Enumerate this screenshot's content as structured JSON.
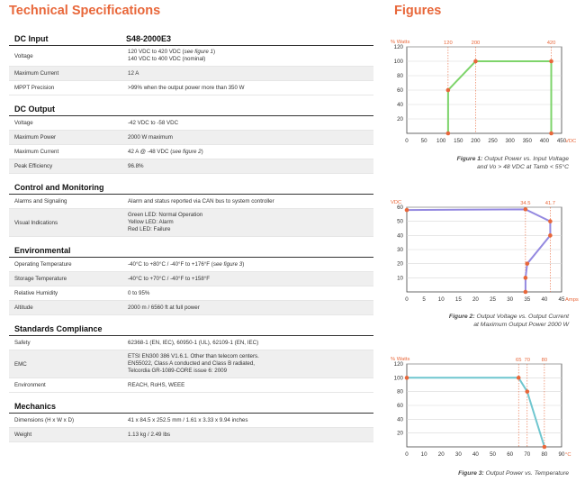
{
  "title": "Technical Specifications",
  "figures_title": "Figures",
  "sections": [
    {
      "name": "DC Input",
      "header_value": "S48-2000E3",
      "rows": [
        {
          "label": "Voltage",
          "lines": [
            "120 VDC to 420 VDC (|see figure 1|)",
            "140 VDC to 400 VDC (nominal)"
          ]
        },
        {
          "label": "Maximum Current",
          "lines": [
            "12 A"
          ]
        },
        {
          "label": "MPPT Precision",
          "lines": [
            ">99% when the output power more than 350 W"
          ]
        }
      ]
    },
    {
      "name": "DC Output",
      "header_value": "",
      "rows": [
        {
          "label": "Voltage",
          "lines": [
            "-42 VDC to -58 VDC"
          ]
        },
        {
          "label": "Maximum Power",
          "lines": [
            "2000 W maximum"
          ]
        },
        {
          "label": "Maximum Current",
          "lines": [
            "42 A @ -48 VDC (|see figure 2|)"
          ]
        },
        {
          "label": "Peak Efficiency",
          "lines": [
            "96.8%"
          ]
        }
      ]
    },
    {
      "name": "Control and Monitoring",
      "header_value": "",
      "rows": [
        {
          "label": "Alarms and Signaling",
          "lines": [
            "Alarm and status reported via CAN bus to system controller"
          ]
        },
        {
          "label": "Visual Indications",
          "lines": [
            "Green LED: Normal Operation",
            "Yellow LED: Alarm",
            "Red LED: Failure"
          ]
        }
      ]
    },
    {
      "name": "Environmental",
      "header_value": "",
      "rows": [
        {
          "label": "Operating Temperature",
          "lines": [
            "-40°C to +80°C / -40°F to +176°F (|see figure 3|)"
          ]
        },
        {
          "label": "Storage Temperature",
          "lines": [
            "-40°C to +70°C / -40°F to +158°F"
          ]
        },
        {
          "label": "Relative Humidity",
          "lines": [
            "0 to 95%"
          ]
        },
        {
          "label": "Altitude",
          "lines": [
            "2000 m / 6560 ft at full power"
          ]
        }
      ]
    },
    {
      "name": "Standards Compliance",
      "header_value": "",
      "rows": [
        {
          "label": "Safety",
          "lines": [
            "62368-1 (EN, IEC), 60950-1 (UL), 62109-1 (EN, IEC)"
          ]
        },
        {
          "label": "EMC",
          "lines": [
            "ETSI EN300 386 V1.6.1. Other than telecom centers.",
            "EN55022, Class A conducted and Class B radiated,",
            "Telcordia GR-1089-CORE issue 6: 2009"
          ]
        },
        {
          "label": "Environment",
          "lines": [
            "REACH, RoHS, WEEE"
          ]
        }
      ]
    },
    {
      "name": "Mechanics",
      "header_value": "",
      "rows": [
        {
          "label": "Dimensions (H x W x D)",
          "lines": [
            "41 x 84.5 x 252.5 mm / 1.61 x 3.33 x 9.94 inches"
          ]
        },
        {
          "label": "Weight",
          "lines": [
            "1.13 kg / 2.49 lbs"
          ]
        }
      ]
    }
  ],
  "colors": {
    "accent": "#e8673a",
    "marker": "#e8673a"
  },
  "chart_data": [
    {
      "type": "line",
      "color": "#7ed46b",
      "xunit": "VDC",
      "yunit": "% Watts",
      "x": [
        120,
        120,
        200,
        420,
        420
      ],
      "y": [
        0,
        60,
        100,
        100,
        0
      ],
      "xlim": [
        0,
        450
      ],
      "ylim": [
        0,
        120
      ],
      "xticks": [
        0,
        50,
        100,
        150,
        200,
        250,
        300,
        350,
        400,
        450
      ],
      "yticks": [
        20,
        40,
        60,
        80,
        100,
        120
      ],
      "annot": [
        120,
        200,
        420
      ],
      "grid": true,
      "caption_label": "Figure 1:",
      "caption_text": "Output Power vs. Input Voltage",
      "caption_line2": "and Vo > 48 VDC at Tamb < 55°C"
    },
    {
      "type": "line",
      "color": "#9489e0",
      "xunit": "Amps",
      "yunit": "VDC",
      "x": [
        0,
        34.5,
        41.7,
        41.7,
        35,
        34.5,
        34.5
      ],
      "y": [
        58,
        58.5,
        50,
        40,
        20,
        10,
        0
      ],
      "xlim": [
        0,
        45
      ],
      "ylim": [
        0,
        60
      ],
      "xticks": [
        0,
        5,
        10,
        15,
        20,
        25,
        30,
        35,
        40,
        45
      ],
      "yticks": [
        10,
        20,
        30,
        40,
        50,
        60
      ],
      "annot": [
        34.5,
        41.7
      ],
      "grid": true,
      "caption_label": "Figure 2:",
      "caption_text": "Output Voltage vs. Output Current",
      "caption_line2": "at Maximum Output Power 2000 W"
    },
    {
      "type": "line",
      "color": "#6fc6cf",
      "xunit": "°C",
      "yunit": "% Watts",
      "x": [
        0,
        65,
        70,
        80
      ],
      "y": [
        100,
        100,
        80,
        0
      ],
      "xlim": [
        0,
        90
      ],
      "ylim": [
        0,
        120
      ],
      "xticks": [
        0,
        10,
        20,
        30,
        40,
        50,
        60,
        70,
        80,
        90
      ],
      "yticks": [
        20,
        40,
        60,
        80,
        100,
        120
      ],
      "annot": [
        65,
        70,
        80
      ],
      "grid": true,
      "caption_label": "Figure 3:",
      "caption_text": "Output Power vs. Temperature",
      "caption_line2": ""
    }
  ]
}
